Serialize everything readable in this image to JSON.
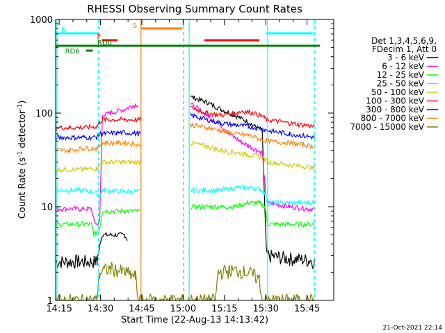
{
  "chart_data": {
    "type": "line",
    "title": "RHESSI Observing Summary Count Rates",
    "xlabel": "Start Time (22-Aug-13 14:13:42)",
    "ylabel": "Count Rate (s",
    "ylabel_sup1": "-1",
    "ylabel_mid": " detector",
    "ylabel_sup2": "-1",
    "ylabel_end": ")",
    "timestamp": "21-Oct-2021 22:14",
    "x_unit": "minutes after 14:13:42",
    "xlim": [
      0,
      101
    ],
    "ylim": [
      1,
      1000
    ],
    "y_scale": "log",
    "x_tick_labels": [
      "14:15",
      "14:30",
      "14:45",
      "15:00",
      "15:15",
      "15:30",
      "15:45"
    ],
    "x_tick_positions_min": [
      1.3,
      16.3,
      31.3,
      46.3,
      61.3,
      76.3,
      91.3
    ],
    "y_tick_labels": [
      "1",
      "10",
      "100",
      "1000"
    ],
    "y_tick_values": [
      1,
      10,
      100,
      1000
    ],
    "legend_title": [
      "Det 1,3,4,5,6,9,",
      "FDecim 1, Att 0"
    ],
    "legend_position": "right",
    "series": [
      {
        "name": "3 - 6 keV",
        "color": "#000000",
        "points": [
          [
            0,
            2.6
          ],
          [
            8,
            2.6
          ],
          [
            15,
            2.6
          ],
          [
            16.5,
            4.5
          ],
          [
            17,
            5
          ],
          [
            25,
            5
          ],
          [
            26,
            4.5
          ],
          [
            46,
            null
          ],
          [
            49,
            150
          ],
          [
            55,
            130
          ],
          [
            60,
            110
          ],
          [
            65,
            95
          ],
          [
            70,
            80
          ],
          [
            73,
            70
          ],
          [
            75,
            66
          ],
          [
            76.5,
            3.5
          ],
          [
            77,
            3
          ],
          [
            85,
            2.8
          ],
          [
            92,
            2.7
          ],
          [
            94,
            2.6
          ]
        ]
      },
      {
        "name": "6 - 12 keV",
        "color": "#ff00ff",
        "points": [
          [
            0,
            9.5
          ],
          [
            10,
            9.5
          ],
          [
            13,
            9.5
          ],
          [
            14,
            7
          ],
          [
            15,
            6.5
          ],
          [
            16,
            7
          ],
          [
            17,
            95
          ],
          [
            20,
            100
          ],
          [
            25,
            110
          ],
          [
            28,
            120
          ],
          [
            30,
            125
          ],
          [
            31,
            null
          ],
          [
            49,
            125
          ],
          [
            55,
            95
          ],
          [
            60,
            75
          ],
          [
            63,
            60
          ],
          [
            67,
            50
          ],
          [
            70,
            45
          ],
          [
            73,
            40
          ],
          [
            75,
            38
          ],
          [
            76.5,
            12
          ],
          [
            77,
            11
          ],
          [
            85,
            10
          ],
          [
            92,
            9.5
          ],
          [
            94,
            9.5
          ]
        ]
      },
      {
        "name": "12 - 25 keV",
        "color": "#00ff00",
        "points": [
          [
            0,
            6.5
          ],
          [
            10,
            6.5
          ],
          [
            13,
            6.5
          ],
          [
            14,
            5
          ],
          [
            15,
            5.5
          ],
          [
            16,
            6
          ],
          [
            17,
            9
          ],
          [
            25,
            9
          ],
          [
            31,
            9
          ],
          [
            33,
            null
          ],
          [
            49,
            10
          ],
          [
            60,
            10
          ],
          [
            65,
            10
          ],
          [
            70,
            11
          ],
          [
            74,
            11
          ],
          [
            76,
            10
          ],
          [
            77,
            6.5
          ],
          [
            85,
            6.5
          ],
          [
            94,
            6.5
          ]
        ]
      },
      {
        "name": "25 - 50 keV",
        "color": "#00ffff",
        "points": [
          [
            0,
            15
          ],
          [
            10,
            15
          ],
          [
            15,
            14
          ],
          [
            16,
            13
          ],
          [
            17,
            15
          ],
          [
            25,
            14.5
          ],
          [
            31,
            14.5
          ],
          [
            33,
            null
          ],
          [
            49,
            15
          ],
          [
            60,
            15
          ],
          [
            66,
            16
          ],
          [
            70,
            16
          ],
          [
            74,
            15.5
          ],
          [
            76,
            14
          ],
          [
            77,
            11
          ],
          [
            85,
            11
          ],
          [
            94,
            11
          ]
        ]
      },
      {
        "name": "50 - 100 keV",
        "color": "#cccc00",
        "points": [
          [
            0,
            25
          ],
          [
            10,
            25
          ],
          [
            15,
            26
          ],
          [
            16,
            28
          ],
          [
            17,
            30
          ],
          [
            25,
            30
          ],
          [
            31,
            30
          ],
          [
            33,
            null
          ],
          [
            49,
            48
          ],
          [
            55,
            44
          ],
          [
            60,
            40
          ],
          [
            65,
            38
          ],
          [
            70,
            36
          ],
          [
            75,
            34
          ],
          [
            77,
            30
          ],
          [
            85,
            28
          ],
          [
            94,
            26
          ]
        ]
      },
      {
        "name": "100 - 300 keV",
        "color": "#ff0000",
        "points": [
          [
            0,
            70
          ],
          [
            5,
            70
          ],
          [
            10,
            70
          ],
          [
            15,
            72
          ],
          [
            16,
            80
          ],
          [
            17,
            85
          ],
          [
            25,
            85
          ],
          [
            31,
            85
          ],
          [
            33,
            null
          ],
          [
            49,
            115
          ],
          [
            55,
            100
          ],
          [
            60,
            95
          ],
          [
            65,
            100
          ],
          [
            68,
            105
          ],
          [
            72,
            100
          ],
          [
            75,
            92
          ],
          [
            77,
            85
          ],
          [
            85,
            78
          ],
          [
            94,
            72
          ]
        ]
      },
      {
        "name": "300 - 800 keV",
        "color": "#0000ff",
        "points": [
          [
            0,
            55
          ],
          [
            10,
            55
          ],
          [
            15,
            55
          ],
          [
            16,
            60
          ],
          [
            17,
            60
          ],
          [
            25,
            62
          ],
          [
            31,
            60
          ],
          [
            33,
            null
          ],
          [
            49,
            95
          ],
          [
            55,
            85
          ],
          [
            60,
            78
          ],
          [
            65,
            75
          ],
          [
            70,
            72
          ],
          [
            75,
            68
          ],
          [
            77,
            65
          ],
          [
            85,
            60
          ],
          [
            94,
            55
          ]
        ]
      },
      {
        "name": "800 - 7000 keV",
        "color": "#ff8000",
        "points": [
          [
            0,
            40
          ],
          [
            5,
            40
          ],
          [
            10,
            42
          ],
          [
            15,
            42
          ],
          [
            16,
            45
          ],
          [
            17,
            48
          ],
          [
            25,
            48
          ],
          [
            31,
            46
          ],
          [
            33,
            null
          ],
          [
            49,
            75
          ],
          [
            55,
            70
          ],
          [
            60,
            65
          ],
          [
            65,
            60
          ],
          [
            70,
            58
          ],
          [
            75,
            52
          ],
          [
            77,
            50
          ],
          [
            85,
            48
          ],
          [
            94,
            44
          ]
        ]
      },
      {
        "name": "7000 - 15000 keV",
        "color": "#808000",
        "points": [
          [
            0,
            1
          ],
          [
            15,
            1
          ],
          [
            16,
            2
          ],
          [
            20,
            2.2
          ],
          [
            25,
            2
          ],
          [
            29,
            1.8
          ],
          [
            30,
            1
          ],
          [
            58,
            1
          ],
          [
            59,
            2
          ],
          [
            65,
            2.1
          ],
          [
            70,
            2
          ],
          [
            74,
            1.7
          ],
          [
            75,
            1
          ],
          [
            94,
            1
          ]
        ]
      }
    ],
    "flags": [
      {
        "label": "N",
        "color": "#00ffff",
        "segments": [
          [
            0,
            15.5
          ],
          [
            76.5,
            93.5
          ]
        ]
      },
      {
        "label": "F",
        "color": "#ff0000",
        "segments": [
          [
            16.8,
            22.5
          ],
          [
            54,
            74
          ]
        ]
      },
      {
        "label": "S",
        "color": "#ff8000",
        "segments": [
          [
            31,
            46
          ]
        ]
      },
      {
        "label": "RD0",
        "color": "#008000",
        "segments": [
          [
            0,
            96
          ]
        ]
      },
      {
        "label": "RD6",
        "color": "#008000",
        "segments": [
          [
            11,
            13.5
          ]
        ]
      }
    ],
    "vertical_markers": [
      {
        "x": 0.5,
        "color": "#00ffff",
        "style": "solid"
      },
      {
        "x": 15.5,
        "color": "#00ffff",
        "style": "dashed"
      },
      {
        "x": 31,
        "color": "#ff8000",
        "style": "solid"
      },
      {
        "x": 46.5,
        "color": "#ff8000",
        "style": "dashed"
      },
      {
        "x": 48.5,
        "color": "#00ffff",
        "style": "solid"
      },
      {
        "x": 77,
        "color": "#00ffff",
        "style": "solid"
      },
      {
        "x": 94,
        "color": "#00ffff",
        "style": "dashed"
      }
    ]
  }
}
